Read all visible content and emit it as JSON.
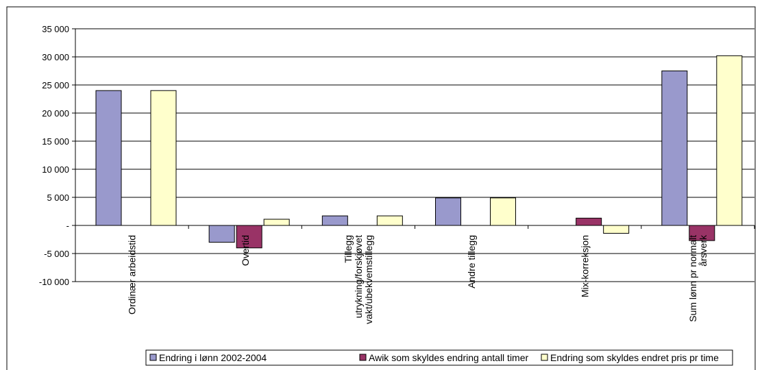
{
  "chart_data": {
    "type": "bar",
    "categories": [
      [
        "Ordinær arbeidstid"
      ],
      [
        "Overtid"
      ],
      [
        "Tillegg",
        "utrykning/forskjøvet",
        "vakt/ubekvemstillegg"
      ],
      [
        "Andre tillegg"
      ],
      [
        "Mix-korreksjon"
      ],
      [
        "Sum lønn pr normalt",
        "årsverk"
      ]
    ],
    "series": [
      {
        "name": "Endring i lønn 2002-2004",
        "color": "#9999cc",
        "values": [
          24000,
          -3000,
          1700,
          4900,
          0,
          27500
        ]
      },
      {
        "name": "Awik som skyldes endring antall timer",
        "color": "#993366",
        "values": [
          0,
          -4000,
          0,
          0,
          1300,
          -2700
        ]
      },
      {
        "name": "Endring som skyldes endret pris pr time",
        "color": "#ffffcc",
        "values": [
          24000,
          1100,
          1700,
          4900,
          -1400,
          30200
        ]
      }
    ],
    "ylim": [
      -10000,
      35000
    ],
    "yticks": [
      35000,
      30000,
      25000,
      20000,
      15000,
      10000,
      5000,
      0,
      -5000,
      -10000
    ],
    "ytick_labels": [
      "35 000",
      "30 000",
      "25 000",
      "20 000",
      "15 000",
      "10 000",
      "5 000",
      "-",
      "-5 000",
      "-10 000"
    ],
    "grid": true,
    "legend_position": "bottom"
  }
}
